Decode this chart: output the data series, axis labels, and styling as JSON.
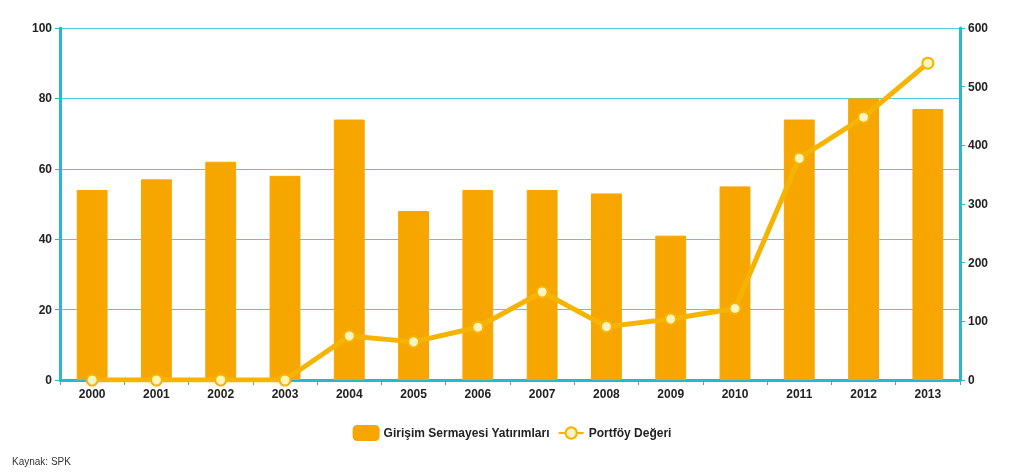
{
  "chart_data": {
    "type": "bar",
    "categories": [
      "2000",
      "2001",
      "2002",
      "2003",
      "2004",
      "2005",
      "2006",
      "2007",
      "2008",
      "2009",
      "2010",
      "2011",
      "2012",
      "2013"
    ],
    "series": [
      {
        "name": "Girişim Sermayesi Yatırımları",
        "color": "#f7a600",
        "values": [
          54,
          57,
          62,
          58,
          74,
          48,
          54,
          54,
          53,
          41,
          55,
          74,
          80,
          77
        ]
      },
      {
        "name": "Portföy Değeri",
        "type": "line",
        "axis": "y2",
        "color": "#f5b400",
        "values": [
          0,
          0,
          0,
          0,
          75,
          65,
          90,
          150,
          91,
          104,
          122,
          378,
          448,
          540
        ]
      }
    ],
    "ylim": [
      0,
      100
    ],
    "yticks": [
      0,
      20,
      40,
      60,
      80,
      100
    ],
    "y2lim": [
      0,
      600
    ],
    "y2ticks": [
      0,
      100,
      200,
      300,
      400,
      500,
      600
    ],
    "grid": "y",
    "legend": "bottom",
    "marker": "circle",
    "annotations": [
      "Kaynak: SPK"
    ]
  }
}
